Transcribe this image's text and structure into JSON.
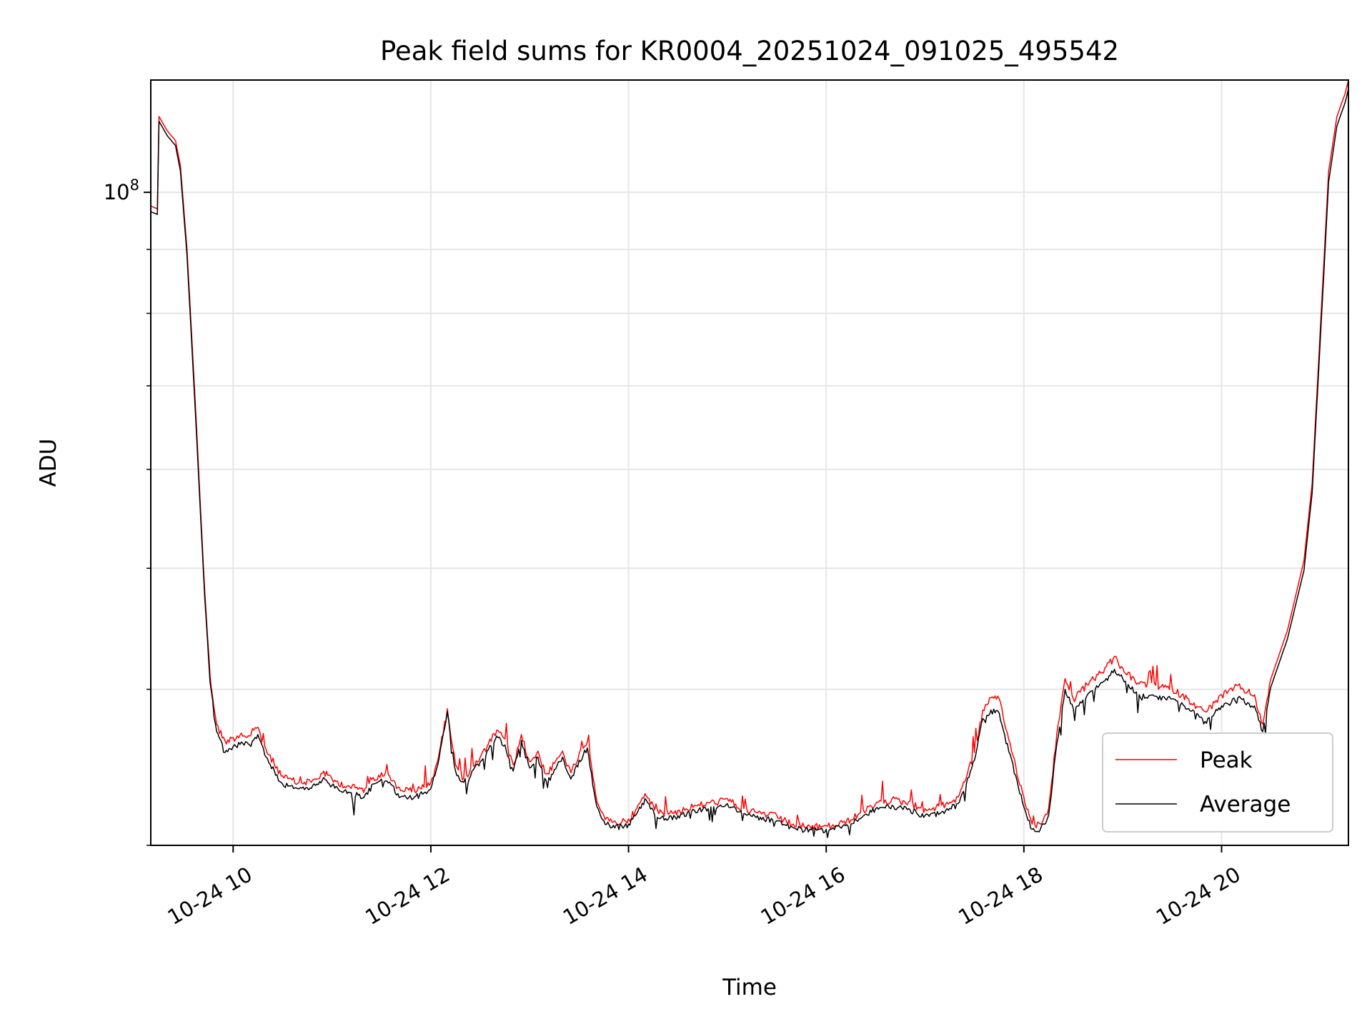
{
  "chart_data": {
    "type": "line",
    "title": "Peak field sums for KR0004_20251024_091025_495542",
    "xlabel": "Time",
    "ylabel": "ADU",
    "y_scale": "log",
    "grid": true,
    "legend_position": "lower right",
    "xlim": [
      "2025-10-24 09:10",
      "2025-10-24 21:17"
    ],
    "ylim": [
      30000000,
      123000000
    ],
    "x_ticks": [
      {
        "time": "2025-10-24 10:00",
        "label": "10-24 10"
      },
      {
        "time": "2025-10-24 12:00",
        "label": "10-24 12"
      },
      {
        "time": "2025-10-24 14:00",
        "label": "10-24 14"
      },
      {
        "time": "2025-10-24 16:00",
        "label": "10-24 16"
      },
      {
        "time": "2025-10-24 18:00",
        "label": "10-24 18"
      },
      {
        "time": "2025-10-24 20:00",
        "label": "10-24 20"
      }
    ],
    "y_major_tick": {
      "value": 100000000,
      "base": "10",
      "exponent": "8"
    },
    "y_minor_ticks": [
      30000000,
      40000000,
      50000000,
      60000000,
      70000000,
      80000000,
      90000000
    ],
    "series": [
      {
        "name": "Peak",
        "color": "#ff0000",
        "points": [
          [
            "2025-10-24 09:10",
            97500000
          ],
          [
            "2025-10-24 09:14",
            97000000
          ],
          [
            "2025-10-24 09:15",
            115000000
          ],
          [
            "2025-10-24 09:20",
            112000000
          ],
          [
            "2025-10-24 09:25",
            110000000
          ],
          [
            "2025-10-24 09:28",
            105000000
          ],
          [
            "2025-10-24 09:32",
            90000000
          ],
          [
            "2025-10-24 09:37",
            68000000
          ],
          [
            "2025-10-24 09:42",
            50000000
          ],
          [
            "2025-10-24 09:46",
            41000000
          ],
          [
            "2025-10-24 09:50",
            37500000
          ],
          [
            "2025-10-24 09:55",
            36400000
          ],
          [
            "2025-10-24 10:00",
            36600000
          ],
          [
            "2025-10-24 10:05",
            36900000
          ],
          [
            "2025-10-24 10:10",
            36700000
          ],
          [
            "2025-10-24 10:15",
            37300000
          ],
          [
            "2025-10-24 10:20",
            35800000
          ],
          [
            "2025-10-24 10:30",
            34100000
          ],
          [
            "2025-10-24 10:40",
            33700000
          ],
          [
            "2025-10-24 10:50",
            33900000
          ],
          [
            "2025-10-24 10:55",
            34400000
          ],
          [
            "2025-10-24 11:00",
            33900000
          ],
          [
            "2025-10-24 11:10",
            33500000
          ],
          [
            "2025-10-24 11:20",
            33300000
          ],
          [
            "2025-10-24 11:25",
            34000000
          ],
          [
            "2025-10-24 11:30",
            34300000
          ],
          [
            "2025-10-24 11:35",
            34100000
          ],
          [
            "2025-10-24 11:40",
            33400000
          ],
          [
            "2025-10-24 11:50",
            33200000
          ],
          [
            "2025-10-24 12:00",
            33700000
          ],
          [
            "2025-10-24 12:05",
            35500000
          ],
          [
            "2025-10-24 12:10",
            38600000
          ],
          [
            "2025-10-24 12:15",
            34800000
          ],
          [
            "2025-10-24 12:20",
            34000000
          ],
          [
            "2025-10-24 12:30",
            35300000
          ],
          [
            "2025-10-24 12:35",
            36200000
          ],
          [
            "2025-10-24 12:40",
            37100000
          ],
          [
            "2025-10-24 12:45",
            36500000
          ],
          [
            "2025-10-24 12:50",
            34800000
          ],
          [
            "2025-10-24 12:55",
            36800000
          ],
          [
            "2025-10-24 13:00",
            35000000
          ],
          [
            "2025-10-24 13:05",
            35700000
          ],
          [
            "2025-10-24 13:10",
            34200000
          ],
          [
            "2025-10-24 13:15",
            34900000
          ],
          [
            "2025-10-24 13:20",
            35700000
          ],
          [
            "2025-10-24 13:25",
            34300000
          ],
          [
            "2025-10-24 13:30",
            35500000
          ],
          [
            "2025-10-24 13:35",
            36300000
          ],
          [
            "2025-10-24 13:40",
            33000000
          ],
          [
            "2025-10-24 13:45",
            31700000
          ],
          [
            "2025-10-24 13:50",
            31300000
          ],
          [
            "2025-10-24 14:00",
            31500000
          ],
          [
            "2025-10-24 14:05",
            32100000
          ],
          [
            "2025-10-24 14:10",
            33000000
          ],
          [
            "2025-10-24 14:15",
            32300000
          ],
          [
            "2025-10-24 14:20",
            31900000
          ],
          [
            "2025-10-24 14:30",
            32000000
          ],
          [
            "2025-10-24 14:40",
            32300000
          ],
          [
            "2025-10-24 14:50",
            32500000
          ],
          [
            "2025-10-24 15:00",
            32700000
          ],
          [
            "2025-10-24 15:10",
            32100000
          ],
          [
            "2025-10-24 15:20",
            31900000
          ],
          [
            "2025-10-24 15:30",
            31700000
          ],
          [
            "2025-10-24 15:40",
            31200000
          ],
          [
            "2025-10-24 15:50",
            31100000
          ],
          [
            "2025-10-24 16:00",
            31100000
          ],
          [
            "2025-10-24 16:10",
            31300000
          ],
          [
            "2025-10-24 16:20",
            31800000
          ],
          [
            "2025-10-24 16:30",
            32400000
          ],
          [
            "2025-10-24 16:40",
            32700000
          ],
          [
            "2025-10-24 16:50",
            32500000
          ],
          [
            "2025-10-24 17:00",
            32100000
          ],
          [
            "2025-10-24 17:10",
            32300000
          ],
          [
            "2025-10-24 17:20",
            32800000
          ],
          [
            "2025-10-24 17:30",
            35600000
          ],
          [
            "2025-10-24 17:35",
            38500000
          ],
          [
            "2025-10-24 17:40",
            39400000
          ],
          [
            "2025-10-24 17:45",
            39300000
          ],
          [
            "2025-10-24 17:50",
            36900000
          ],
          [
            "2025-10-24 18:00",
            32800000
          ],
          [
            "2025-10-24 18:05",
            31200000
          ],
          [
            "2025-10-24 18:10",
            31200000
          ],
          [
            "2025-10-24 18:15",
            32100000
          ],
          [
            "2025-10-24 18:20",
            36900000
          ],
          [
            "2025-10-24 18:25",
            40800000
          ],
          [
            "2025-10-24 18:30",
            39300000
          ],
          [
            "2025-10-24 18:40",
            40600000
          ],
          [
            "2025-10-24 18:50",
            41700000
          ],
          [
            "2025-10-24 18:55",
            42500000
          ],
          [
            "2025-10-24 19:00",
            41600000
          ],
          [
            "2025-10-24 19:10",
            40400000
          ],
          [
            "2025-10-24 19:20",
            40300000
          ],
          [
            "2025-10-24 19:30",
            40100000
          ],
          [
            "2025-10-24 19:40",
            39300000
          ],
          [
            "2025-10-24 19:50",
            38400000
          ],
          [
            "2025-10-24 20:00",
            39600000
          ],
          [
            "2025-10-24 20:10",
            40300000
          ],
          [
            "2025-10-24 20:20",
            39600000
          ],
          [
            "2025-10-24 20:25",
            37500000
          ],
          [
            "2025-10-24 20:30",
            40800000
          ],
          [
            "2025-10-24 20:40",
            44600000
          ],
          [
            "2025-10-24 20:50",
            50700000
          ],
          [
            "2025-10-24 20:55",
            58500000
          ],
          [
            "2025-10-24 21:00",
            78000000
          ],
          [
            "2025-10-24 21:05",
            104000000
          ],
          [
            "2025-10-24 21:10",
            115000000
          ],
          [
            "2025-10-24 21:15",
            120000000
          ],
          [
            "2025-10-24 21:17",
            123000000
          ]
        ]
      },
      {
        "name": "Average",
        "color": "#000000",
        "points": [
          [
            "2025-10-24 09:10",
            96500000
          ],
          [
            "2025-10-24 09:14",
            96000000
          ],
          [
            "2025-10-24 09:15",
            114000000
          ],
          [
            "2025-10-24 09:20",
            111000000
          ],
          [
            "2025-10-24 09:25",
            109000000
          ],
          [
            "2025-10-24 09:28",
            104000000
          ],
          [
            "2025-10-24 09:32",
            89000000
          ],
          [
            "2025-10-24 09:37",
            67000000
          ],
          [
            "2025-10-24 09:42",
            49500000
          ],
          [
            "2025-10-24 09:46",
            40500000
          ],
          [
            "2025-10-24 09:50",
            37000000
          ],
          [
            "2025-10-24 09:55",
            35600000
          ],
          [
            "2025-10-24 10:00",
            36000000
          ],
          [
            "2025-10-24 10:05",
            36300000
          ],
          [
            "2025-10-24 10:10",
            36100000
          ],
          [
            "2025-10-24 10:15",
            36800000
          ],
          [
            "2025-10-24 10:20",
            35300000
          ],
          [
            "2025-10-24 10:30",
            33600000
          ],
          [
            "2025-10-24 10:40",
            33300000
          ],
          [
            "2025-10-24 10:50",
            33500000
          ],
          [
            "2025-10-24 10:55",
            34000000
          ],
          [
            "2025-10-24 11:00",
            33500000
          ],
          [
            "2025-10-24 11:10",
            33100000
          ],
          [
            "2025-10-24 11:20",
            32900000
          ],
          [
            "2025-10-24 11:25",
            33600000
          ],
          [
            "2025-10-24 11:30",
            33900000
          ],
          [
            "2025-10-24 11:35",
            33700000
          ],
          [
            "2025-10-24 11:40",
            33000000
          ],
          [
            "2025-10-24 11:50",
            32800000
          ],
          [
            "2025-10-24 12:00",
            33300000
          ],
          [
            "2025-10-24 12:05",
            35200000
          ],
          [
            "2025-10-24 12:10",
            38400000
          ],
          [
            "2025-10-24 12:15",
            34400000
          ],
          [
            "2025-10-24 12:20",
            33700000
          ],
          [
            "2025-10-24 12:30",
            35000000
          ],
          [
            "2025-10-24 12:35",
            35800000
          ],
          [
            "2025-10-24 12:40",
            36700000
          ],
          [
            "2025-10-24 12:45",
            36100000
          ],
          [
            "2025-10-24 12:50",
            34400000
          ],
          [
            "2025-10-24 12:55",
            36400000
          ],
          [
            "2025-10-24 13:00",
            34600000
          ],
          [
            "2025-10-24 13:05",
            35300000
          ],
          [
            "2025-10-24 13:10",
            33800000
          ],
          [
            "2025-10-24 13:15",
            34500000
          ],
          [
            "2025-10-24 13:20",
            35300000
          ],
          [
            "2025-10-24 13:25",
            33900000
          ],
          [
            "2025-10-24 13:30",
            35100000
          ],
          [
            "2025-10-24 13:35",
            35900000
          ],
          [
            "2025-10-24 13:40",
            32600000
          ],
          [
            "2025-10-24 13:45",
            31400000
          ],
          [
            "2025-10-24 13:50",
            31000000
          ],
          [
            "2025-10-24 14:00",
            31200000
          ],
          [
            "2025-10-24 14:05",
            31800000
          ],
          [
            "2025-10-24 14:10",
            32700000
          ],
          [
            "2025-10-24 14:15",
            32000000
          ],
          [
            "2025-10-24 14:20",
            31600000
          ],
          [
            "2025-10-24 14:30",
            31700000
          ],
          [
            "2025-10-24 14:40",
            32000000
          ],
          [
            "2025-10-24 14:50",
            32200000
          ],
          [
            "2025-10-24 15:00",
            32400000
          ],
          [
            "2025-10-24 15:10",
            31800000
          ],
          [
            "2025-10-24 15:20",
            31600000
          ],
          [
            "2025-10-24 15:30",
            31400000
          ],
          [
            "2025-10-24 15:40",
            31000000
          ],
          [
            "2025-10-24 15:50",
            30900000
          ],
          [
            "2025-10-24 16:00",
            30900000
          ],
          [
            "2025-10-24 16:10",
            31100000
          ],
          [
            "2025-10-24 16:20",
            31500000
          ],
          [
            "2025-10-24 16:30",
            32100000
          ],
          [
            "2025-10-24 16:40",
            32300000
          ],
          [
            "2025-10-24 16:50",
            32100000
          ],
          [
            "2025-10-24 17:00",
            31700000
          ],
          [
            "2025-10-24 17:10",
            31900000
          ],
          [
            "2025-10-24 17:20",
            32400000
          ],
          [
            "2025-10-24 17:30",
            35100000
          ],
          [
            "2025-10-24 17:35",
            37900000
          ],
          [
            "2025-10-24 17:40",
            38500000
          ],
          [
            "2025-10-24 17:45",
            38300000
          ],
          [
            "2025-10-24 17:50",
            36200000
          ],
          [
            "2025-10-24 18:00",
            32200000
          ],
          [
            "2025-10-24 18:05",
            30900000
          ],
          [
            "2025-10-24 18:10",
            30900000
          ],
          [
            "2025-10-24 18:15",
            31700000
          ],
          [
            "2025-10-24 18:20",
            36200000
          ],
          [
            "2025-10-24 18:25",
            40000000
          ],
          [
            "2025-10-24 18:30",
            38600000
          ],
          [
            "2025-10-24 18:40",
            39800000
          ],
          [
            "2025-10-24 18:50",
            40800000
          ],
          [
            "2025-10-24 18:55",
            41500000
          ],
          [
            "2025-10-24 19:00",
            40800000
          ],
          [
            "2025-10-24 19:10",
            39600000
          ],
          [
            "2025-10-24 19:20",
            39500000
          ],
          [
            "2025-10-24 19:30",
            39300000
          ],
          [
            "2025-10-24 19:40",
            38600000
          ],
          [
            "2025-10-24 19:50",
            37700000
          ],
          [
            "2025-10-24 20:00",
            38800000
          ],
          [
            "2025-10-24 20:10",
            39400000
          ],
          [
            "2025-10-24 20:20",
            38800000
          ],
          [
            "2025-10-24 20:25",
            37000000
          ],
          [
            "2025-10-24 20:30",
            40200000
          ],
          [
            "2025-10-24 20:40",
            43900000
          ],
          [
            "2025-10-24 20:50",
            49800000
          ],
          [
            "2025-10-24 20:55",
            57500000
          ],
          [
            "2025-10-24 21:00",
            76500000
          ],
          [
            "2025-10-24 21:05",
            102000000
          ],
          [
            "2025-10-24 21:10",
            113000000
          ],
          [
            "2025-10-24 21:15",
            118000000
          ],
          [
            "2025-10-24 21:17",
            121000000
          ]
        ]
      }
    ]
  }
}
